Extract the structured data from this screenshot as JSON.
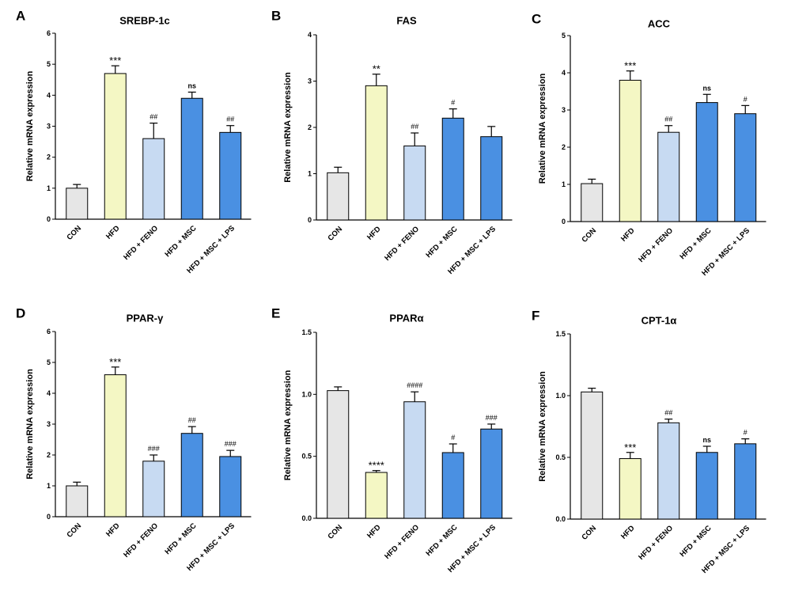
{
  "colors": {
    "axis": "#000000",
    "bar_stroke": "#000000",
    "CON": "#e6e6e6",
    "HFD": "#f4f7c4",
    "HFD + FENO": "#c7daf2",
    "HFD + MSC": "#4a90e2",
    "HFD + MSC + LPS": "#4a90e2"
  },
  "chart_data": [
    {
      "panel": "A",
      "title": "SREBP-1c",
      "type": "bar",
      "ylabel": "Relative mRNA expression",
      "ylim": [
        0,
        6
      ],
      "yticks": [
        "0",
        "1",
        "2",
        "3",
        "4",
        "5",
        "6"
      ],
      "categories": [
        "CON",
        "HFD",
        "HFD + FENO",
        "HFD + MSC",
        "HFD + MSC + LPS"
      ],
      "values": [
        1.0,
        4.7,
        2.6,
        3.9,
        2.8
      ],
      "errors": [
        0.12,
        0.25,
        0.5,
        0.2,
        0.22
      ],
      "annotations": [
        "",
        "***",
        "##",
        "ns",
        "##"
      ]
    },
    {
      "panel": "B",
      "title": "FAS",
      "type": "bar",
      "ylabel": "Relative mRNA expression",
      "ylim": [
        0,
        4
      ],
      "yticks": [
        "0",
        "1",
        "2",
        "3",
        "4"
      ],
      "categories": [
        "CON",
        "HFD",
        "HFD + FENO",
        "HFD + MSC",
        "HFD + MSC + LPS"
      ],
      "values": [
        1.02,
        2.9,
        1.6,
        2.2,
        1.8
      ],
      "errors": [
        0.12,
        0.25,
        0.28,
        0.2,
        0.22
      ],
      "annotations": [
        "",
        "**",
        "##",
        "#",
        ""
      ]
    },
    {
      "panel": "C",
      "title": "ACC",
      "type": "bar",
      "ylabel": "Relative mRNA expression",
      "ylim": [
        0,
        5
      ],
      "yticks": [
        "0",
        "1",
        "2",
        "3",
        "4",
        "5"
      ],
      "categories": [
        "CON",
        "HFD",
        "HFD + FENO",
        "HFD + MSC",
        "HFD + MSC + LPS"
      ],
      "values": [
        1.02,
        3.8,
        2.4,
        3.2,
        2.9
      ],
      "errors": [
        0.12,
        0.25,
        0.18,
        0.22,
        0.22
      ],
      "annotations": [
        "",
        "***",
        "##",
        "ns",
        "#"
      ]
    },
    {
      "panel": "D",
      "title": "PPAR-γ",
      "type": "bar",
      "ylabel": "Relative mRNA expression",
      "ylim": [
        0,
        6
      ],
      "yticks": [
        "0",
        "1",
        "2",
        "3",
        "4",
        "5",
        "6"
      ],
      "categories": [
        "CON",
        "HFD",
        "HFD + FENO",
        "HFD + MSC",
        "HFD + MSC + LPS"
      ],
      "values": [
        1.0,
        4.6,
        1.8,
        2.7,
        1.95
      ],
      "errors": [
        0.12,
        0.25,
        0.2,
        0.22,
        0.2
      ],
      "annotations": [
        "",
        "***",
        "###",
        "##",
        "###"
      ]
    },
    {
      "panel": "E",
      "title": "PPARα",
      "type": "bar",
      "ylabel": "Relative mRNA expression",
      "ylim": [
        0,
        1.5
      ],
      "yticks": [
        "0.0",
        "0.5",
        "1.0",
        "1.5"
      ],
      "categories": [
        "CON",
        "HFD",
        "HFD + FENO",
        "HFD + MSC",
        "HFD + MSC + LPS"
      ],
      "values": [
        1.03,
        0.37,
        0.94,
        0.53,
        0.72
      ],
      "errors": [
        0.03,
        0.015,
        0.08,
        0.07,
        0.04
      ],
      "annotations": [
        "",
        "****",
        "####",
        "#",
        "###"
      ]
    },
    {
      "panel": "F",
      "title": "CPT-1α",
      "type": "bar",
      "ylabel": "Relative mRNA expression",
      "ylim": [
        0,
        1.5
      ],
      "yticks": [
        "0.0",
        "0.5",
        "1.0",
        "1.5"
      ],
      "categories": [
        "CON",
        "HFD",
        "HFD + FENO",
        "HFD + MSC",
        "HFD + MSC + LPS"
      ],
      "values": [
        1.03,
        0.49,
        0.78,
        0.54,
        0.61
      ],
      "errors": [
        0.03,
        0.05,
        0.03,
        0.05,
        0.04
      ],
      "annotations": [
        "",
        "***",
        "##",
        "ns",
        "#"
      ]
    }
  ]
}
